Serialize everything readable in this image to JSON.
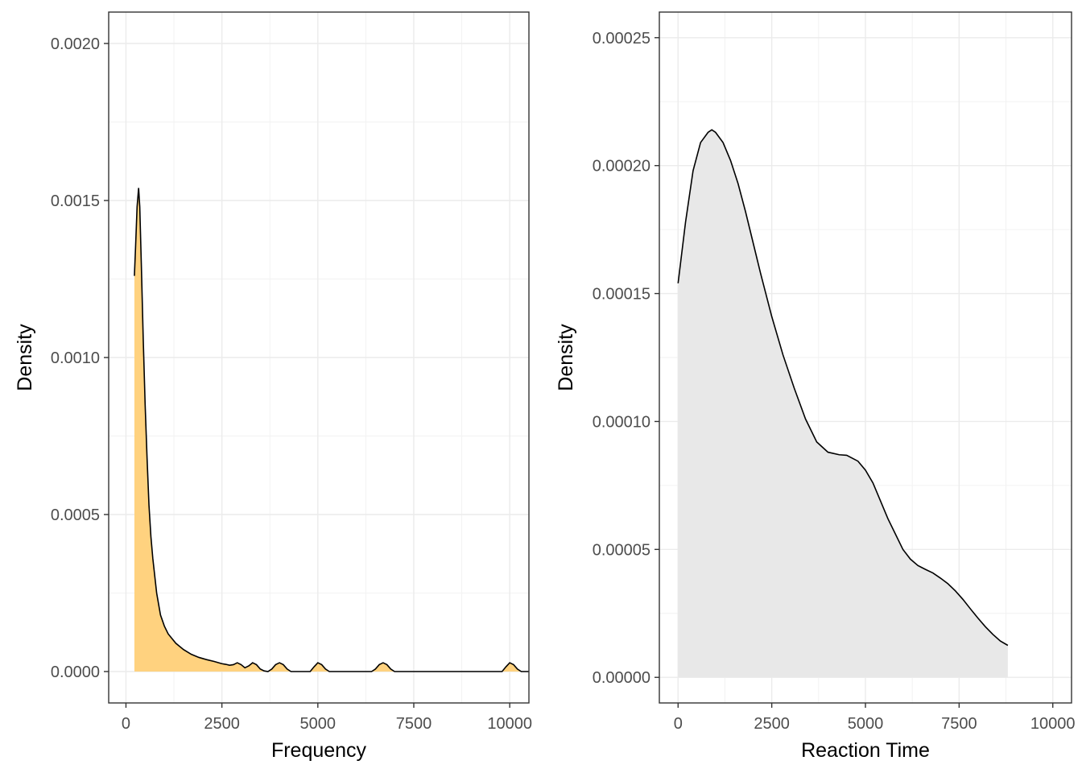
{
  "chart_data": [
    {
      "type": "area",
      "xlabel": "Frequency",
      "ylabel": "Density",
      "xlim": [
        -450,
        10500
      ],
      "ylim": [
        -0.0001,
        0.0021
      ],
      "x_ticks": [
        0,
        2500,
        5000,
        7500,
        10000
      ],
      "x_tick_labels": [
        "0",
        "2500",
        "5000",
        "7500",
        "10000"
      ],
      "y_ticks": [
        0.0,
        0.0005,
        0.001,
        0.0015,
        0.002
      ],
      "y_tick_labels": [
        "0.0000",
        "0.0005",
        "0.0010",
        "0.0015",
        "0.0020"
      ],
      "grid": true,
      "fill_color": "#FFD27F",
      "line_color": "#000000",
      "series": [
        {
          "x": [
            220,
            250,
            290,
            330,
            360,
            400,
            450,
            500,
            550,
            600,
            650,
            700,
            800,
            900,
            1000,
            1100,
            1300,
            1500,
            1700,
            1900,
            2100,
            2300,
            2500,
            2600,
            2700,
            2800,
            2900,
            3000,
            3100,
            3200,
            3300,
            3400,
            3500,
            3600,
            3700,
            3800,
            3900,
            4000,
            4100,
            4200,
            4300,
            4400,
            4600,
            4800,
            4900,
            5000,
            5100,
            5200,
            5300,
            5400,
            6000,
            6400,
            6500,
            6600,
            6700,
            6800,
            6900,
            7000,
            8000,
            9000,
            9800,
            9900,
            10000,
            10100,
            10200,
            10300,
            10500
          ],
          "y": [
            0.00126,
            0.00135,
            0.00148,
            0.00154,
            0.00148,
            0.0013,
            0.00106,
            0.00085,
            0.00068,
            0.00053,
            0.00043,
            0.00036,
            0.00025,
            0.00018,
            0.000145,
            0.00012,
            9e-05,
            7e-05,
            5.5e-05,
            4.5e-05,
            3.8e-05,
            3.2e-05,
            2.5e-05,
            2.3e-05,
            2e-05,
            2.2e-05,
            2.8e-05,
            2.2e-05,
            1.2e-05,
            1.8e-05,
            2.8e-05,
            2.2e-05,
            8e-06,
            2e-06,
            0.0,
            8e-06,
            2.2e-05,
            2.8e-05,
            2.2e-05,
            8e-06,
            0.0,
            0.0,
            0.0,
            0.0,
            1.5e-05,
            2.8e-05,
            2.2e-05,
            8e-06,
            0.0,
            0.0,
            0.0,
            0.0,
            8e-06,
            2.2e-05,
            2.8e-05,
            2.2e-05,
            8e-06,
            0.0,
            0.0,
            0.0,
            0.0,
            1.5e-05,
            2.8e-05,
            2.2e-05,
            8e-06,
            0.0,
            0.0
          ]
        }
      ]
    },
    {
      "type": "area",
      "xlabel": "Reaction Time",
      "ylabel": "Density",
      "xlim": [
        -500,
        10500
      ],
      "ylim": [
        -1e-05,
        0.00026
      ],
      "x_ticks": [
        0,
        2500,
        5000,
        7500,
        10000
      ],
      "x_tick_labels": [
        "0",
        "2500",
        "5000",
        "7500",
        "10000"
      ],
      "y_ticks": [
        0.0,
        5e-05,
        0.0001,
        0.00015,
        0.0002,
        0.00025
      ],
      "y_tick_labels": [
        "0.00000",
        "0.00005",
        "0.00010",
        "0.00015",
        "0.00020",
        "0.00025"
      ],
      "grid": true,
      "fill_color": "#E8E8E8",
      "line_color": "#000000",
      "series": [
        {
          "x": [
            0,
            200,
            400,
            600,
            800,
            900,
            1000,
            1200,
            1400,
            1600,
            1800,
            2000,
            2200,
            2500,
            2800,
            3100,
            3400,
            3700,
            4000,
            4300,
            4500,
            4800,
            5000,
            5200,
            5400,
            5600,
            5800,
            6000,
            6200,
            6400,
            6600,
            6800,
            7000,
            7200,
            7400,
            7600,
            7800,
            8000,
            8200,
            8400,
            8600,
            8800
          ],
          "y": [
            0.000154,
            0.000178,
            0.000198,
            0.000209,
            0.000213,
            0.000214,
            0.000213,
            0.000209,
            0.000202,
            0.000193,
            0.000182,
            0.00017,
            0.000158,
            0.000141,
            0.000126,
            0.000113,
            0.000101,
            9.2e-05,
            8.8e-05,
            8.7e-05,
            8.68e-05,
            8.45e-05,
            8.1e-05,
            7.6e-05,
            6.9e-05,
            6.2e-05,
            5.6e-05,
            5e-05,
            4.62e-05,
            4.37e-05,
            4.22e-05,
            4.08e-05,
            3.88e-05,
            3.66e-05,
            3.38e-05,
            3.05e-05,
            2.68e-05,
            2.32e-05,
            1.98e-05,
            1.68e-05,
            1.42e-05,
            1.25e-05
          ]
        }
      ]
    }
  ]
}
